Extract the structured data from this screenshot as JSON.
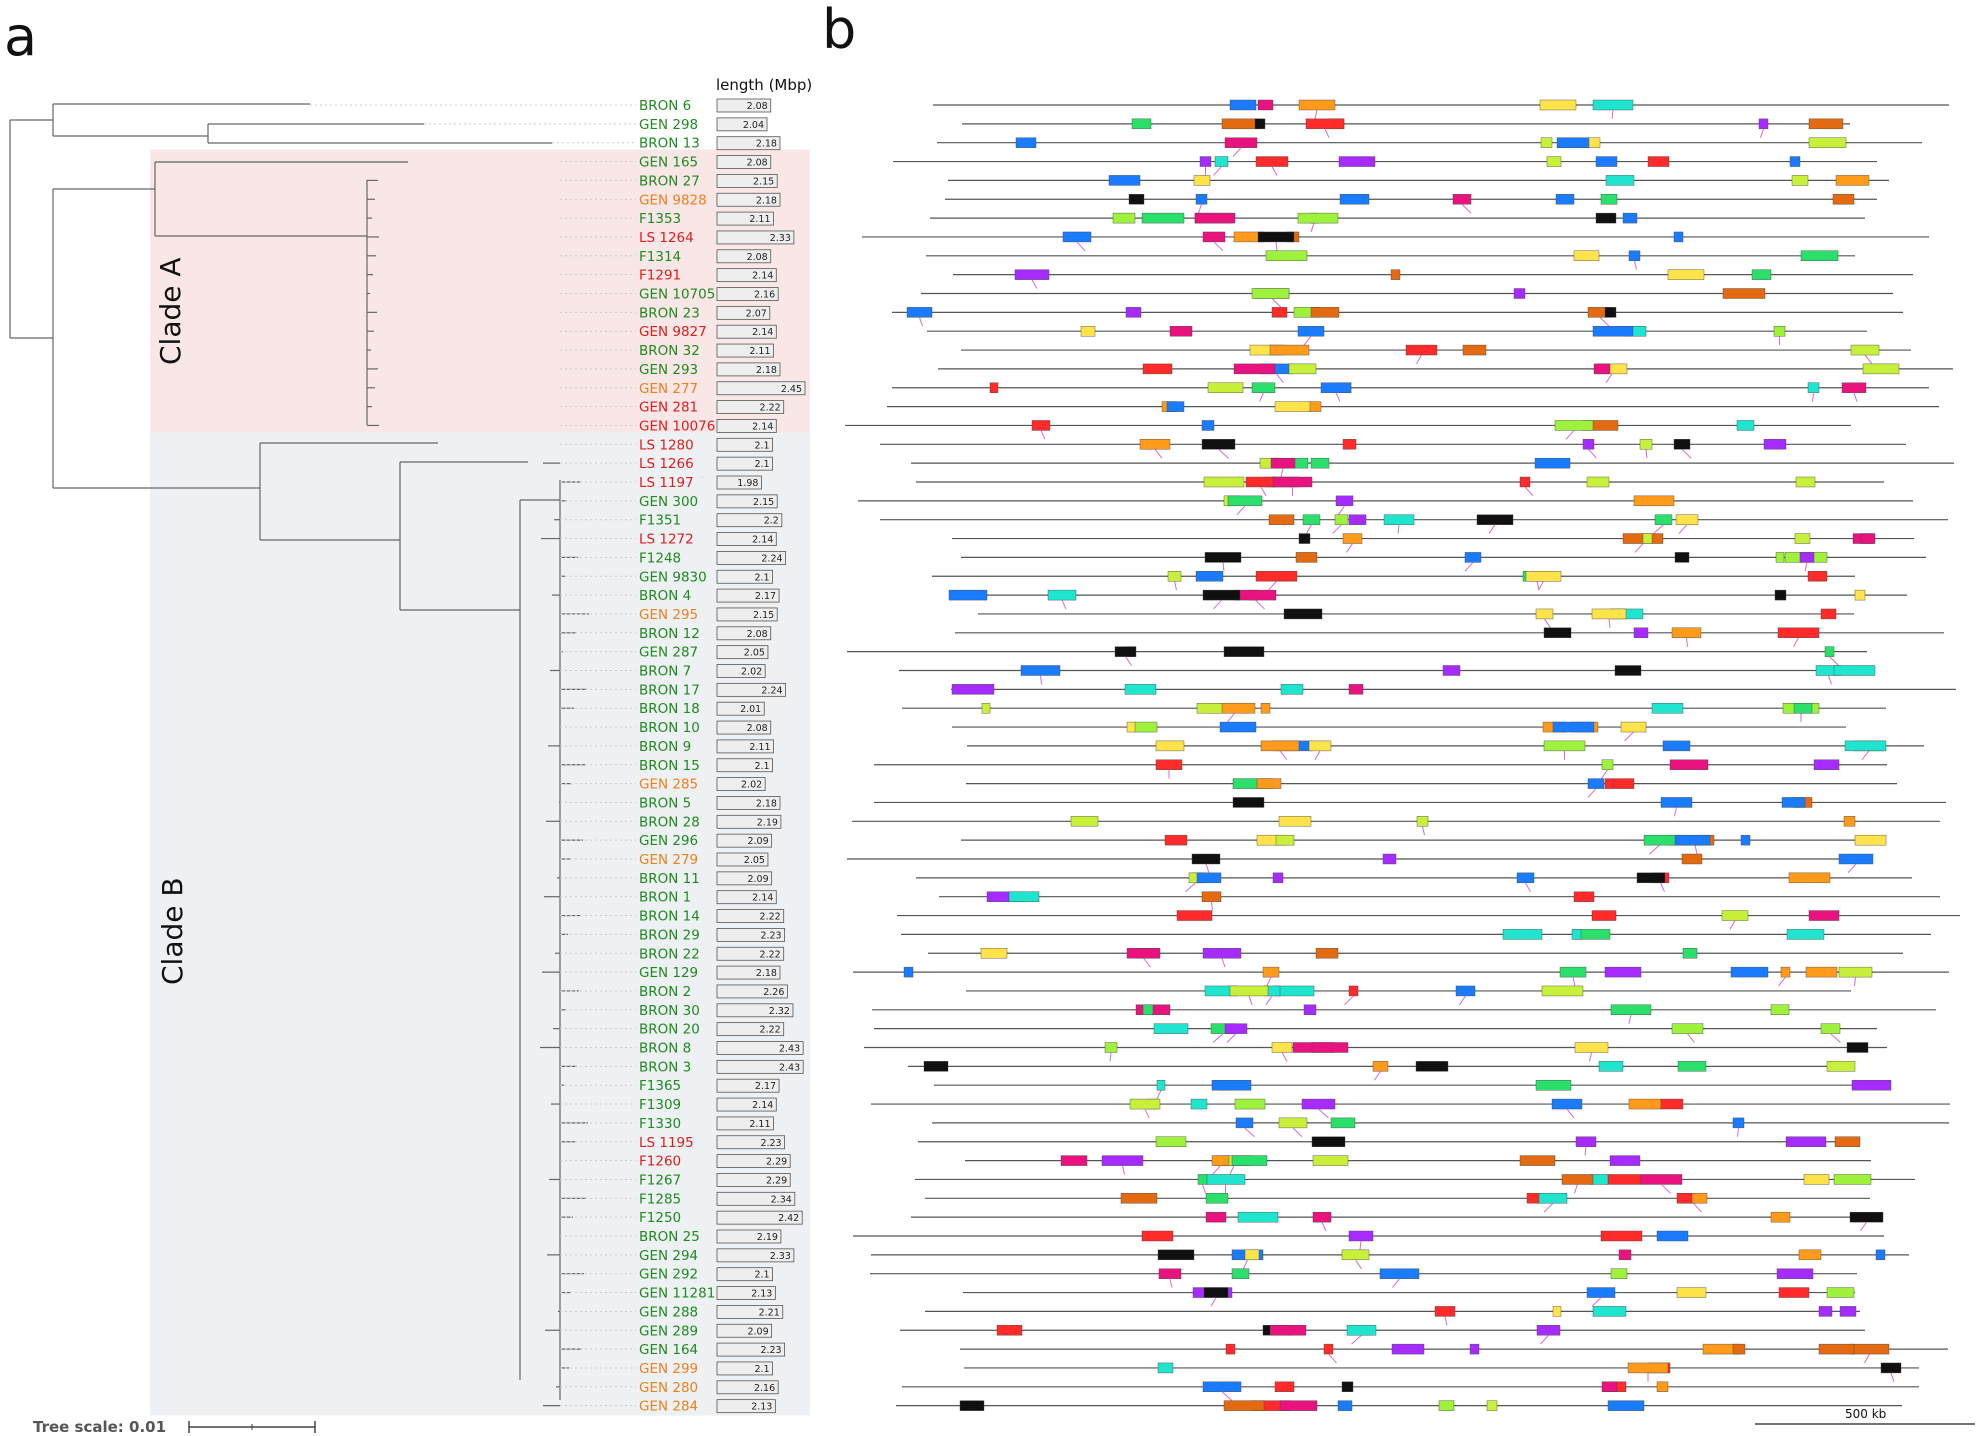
{
  "panels": {
    "a": "a",
    "b": "b"
  },
  "clades": {
    "a": "Clade A",
    "b": "Clade B"
  },
  "length_header": "length (Mbp)",
  "tree_scale": "Tree scale: 0.01",
  "scale_bar_b": "500 kb",
  "colors": {
    "green": "#1f8a1f",
    "red": "#e01c1c",
    "orange": "#f07f1d",
    "cladeA": "#f9e7e7",
    "cladeB": "#eef1f4"
  },
  "strains": [
    {
      "name": "BRON 6",
      "len": "2.08",
      "c": "green"
    },
    {
      "name": "GEN 298",
      "len": "2.04",
      "c": "green"
    },
    {
      "name": "BRON 13",
      "len": "2.18",
      "c": "green"
    },
    {
      "name": "GEN 165",
      "len": "2.08",
      "c": "green"
    },
    {
      "name": "BRON 27",
      "len": "2.15",
      "c": "green"
    },
    {
      "name": "GEN 9828",
      "len": "2.18",
      "c": "orange"
    },
    {
      "name": "F1353",
      "len": "2.11",
      "c": "green"
    },
    {
      "name": "LS 1264",
      "len": "2.33",
      "c": "red"
    },
    {
      "name": "F1314",
      "len": "2.08",
      "c": "green"
    },
    {
      "name": "F1291",
      "len": "2.14",
      "c": "red"
    },
    {
      "name": "GEN 10705",
      "len": "2.16",
      "c": "green"
    },
    {
      "name": "BRON 23",
      "len": "2.07",
      "c": "green"
    },
    {
      "name": "GEN 9827",
      "len": "2.14",
      "c": "red"
    },
    {
      "name": "BRON 32",
      "len": "2.11",
      "c": "green"
    },
    {
      "name": "GEN 293",
      "len": "2.18",
      "c": "green"
    },
    {
      "name": "GEN 277",
      "len": "2.45",
      "c": "orange"
    },
    {
      "name": "GEN 281",
      "len": "2.22",
      "c": "red"
    },
    {
      "name": "GEN 10076",
      "len": "2.14",
      "c": "red"
    },
    {
      "name": "LS 1280",
      "len": "2.1",
      "c": "red"
    },
    {
      "name": "LS 1266",
      "len": "2.1",
      "c": "red"
    },
    {
      "name": "LS 1197",
      "len": "1.98",
      "c": "red"
    },
    {
      "name": "GEN 300",
      "len": "2.15",
      "c": "green"
    },
    {
      "name": "F1351",
      "len": "2.2",
      "c": "green"
    },
    {
      "name": "LS 1272",
      "len": "2.14",
      "c": "red"
    },
    {
      "name": "F1248",
      "len": "2.24",
      "c": "green"
    },
    {
      "name": "GEN 9830",
      "len": "2.1",
      "c": "green"
    },
    {
      "name": "BRON 4",
      "len": "2.17",
      "c": "green"
    },
    {
      "name": "GEN 295",
      "len": "2.15",
      "c": "orange"
    },
    {
      "name": "BRON 12",
      "len": "2.08",
      "c": "green"
    },
    {
      "name": "GEN 287",
      "len": "2.05",
      "c": "green"
    },
    {
      "name": "BRON 7",
      "len": "2.02",
      "c": "green"
    },
    {
      "name": "BRON 17",
      "len": "2.24",
      "c": "green"
    },
    {
      "name": "BRON 18",
      "len": "2.01",
      "c": "green"
    },
    {
      "name": "BRON 10",
      "len": "2.08",
      "c": "green"
    },
    {
      "name": "BRON 9",
      "len": "2.11",
      "c": "green"
    },
    {
      "name": "BRON 15",
      "len": "2.1",
      "c": "green"
    },
    {
      "name": "GEN 285",
      "len": "2.02",
      "c": "orange"
    },
    {
      "name": "BRON 5",
      "len": "2.18",
      "c": "green"
    },
    {
      "name": "BRON 28",
      "len": "2.19",
      "c": "green"
    },
    {
      "name": "GEN 296",
      "len": "2.09",
      "c": "green"
    },
    {
      "name": "GEN 279",
      "len": "2.05",
      "c": "orange"
    },
    {
      "name": "BRON 11",
      "len": "2.09",
      "c": "green"
    },
    {
      "name": "BRON 1",
      "len": "2.14",
      "c": "green"
    },
    {
      "name": "BRON 14",
      "len": "2.22",
      "c": "green"
    },
    {
      "name": "BRON 29",
      "len": "2.23",
      "c": "green"
    },
    {
      "name": "BRON 22",
      "len": "2.22",
      "c": "green"
    },
    {
      "name": "GEN 129",
      "len": "2.18",
      "c": "green"
    },
    {
      "name": "BRON 2",
      "len": "2.26",
      "c": "green"
    },
    {
      "name": "BRON 30",
      "len": "2.32",
      "c": "green"
    },
    {
      "name": "BRON 20",
      "len": "2.22",
      "c": "green"
    },
    {
      "name": "BRON 8",
      "len": "2.43",
      "c": "green"
    },
    {
      "name": "BRON 3",
      "len": "2.43",
      "c": "green"
    },
    {
      "name": "F1365",
      "len": "2.17",
      "c": "green"
    },
    {
      "name": "F1309",
      "len": "2.14",
      "c": "green"
    },
    {
      "name": "F1330",
      "len": "2.11",
      "c": "green"
    },
    {
      "name": "LS 1195",
      "len": "2.23",
      "c": "red"
    },
    {
      "name": "F1260",
      "len": "2.29",
      "c": "red"
    },
    {
      "name": "F1267",
      "len": "2.29",
      "c": "green"
    },
    {
      "name": "F1285",
      "len": "2.34",
      "c": "green"
    },
    {
      "name": "F1250",
      "len": "2.42",
      "c": "green"
    },
    {
      "name": "BRON 25",
      "len": "2.19",
      "c": "green"
    },
    {
      "name": "GEN 294",
      "len": "2.33",
      "c": "green"
    },
    {
      "name": "GEN 292",
      "len": "2.1",
      "c": "green"
    },
    {
      "name": "GEN 11281",
      "len": "2.13",
      "c": "green"
    },
    {
      "name": "GEN 288",
      "len": "2.21",
      "c": "green"
    },
    {
      "name": "GEN 289",
      "len": "2.09",
      "c": "green"
    },
    {
      "name": "GEN 164",
      "len": "2.23",
      "c": "green"
    },
    {
      "name": "GEN 299",
      "len": "2.1",
      "c": "orange"
    },
    {
      "name": "GEN 280",
      "len": "2.16",
      "c": "orange"
    },
    {
      "name": "GEN 284",
      "len": "2.13",
      "c": "orange"
    }
  ]
}
